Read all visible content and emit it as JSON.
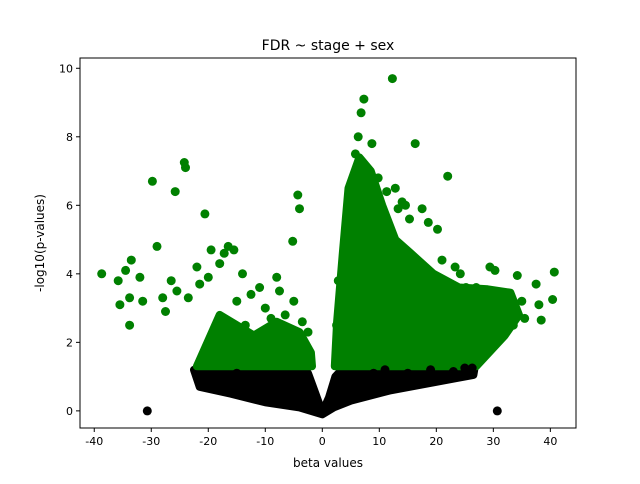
{
  "chart_data": {
    "type": "scatter",
    "title": "FDR ~ stage + sex",
    "xlabel": "beta values",
    "ylabel": "-log10(p-values)",
    "xlim": [
      -42.5,
      44.5
    ],
    "ylim": [
      -0.5,
      10.3
    ],
    "xticks": [
      -40,
      -30,
      -20,
      -10,
      0,
      10,
      20,
      30,
      40
    ],
    "yticks": [
      0,
      2,
      4,
      6,
      8,
      10
    ],
    "grid": false,
    "legend": "none",
    "colors": {
      "significant": "#008000",
      "not_significant": "#000000"
    },
    "significance_threshold_y": 1.3,
    "series": [
      {
        "color": "#008000",
        "points": [
          [
            -38.7,
            4.0
          ],
          [
            -35.8,
            3.8
          ],
          [
            -35.5,
            3.1
          ],
          [
            -34.5,
            4.1
          ],
          [
            -33.8,
            3.3
          ],
          [
            -33.5,
            4.4
          ],
          [
            -33.8,
            2.5
          ],
          [
            -32.0,
            3.9
          ],
          [
            -31.5,
            3.2
          ],
          [
            -29.8,
            6.7
          ],
          [
            -29.0,
            4.8
          ],
          [
            -28.0,
            3.3
          ],
          [
            -27.5,
            2.9
          ],
          [
            -26.5,
            3.8
          ],
          [
            -25.8,
            6.4
          ],
          [
            -25.5,
            3.5
          ],
          [
            -24.2,
            7.25
          ],
          [
            -24.0,
            7.1
          ],
          [
            -23.5,
            3.3
          ],
          [
            -22.0,
            4.2
          ],
          [
            -21.5,
            3.7
          ],
          [
            -20.6,
            5.75
          ],
          [
            -20.0,
            3.9
          ],
          [
            -19.5,
            4.7
          ],
          [
            -18.8,
            2.4
          ],
          [
            -18.0,
            4.3
          ],
          [
            -17.2,
            4.6
          ],
          [
            -16.5,
            4.8
          ],
          [
            -15.5,
            4.7
          ],
          [
            -15.0,
            3.2
          ],
          [
            -14.0,
            4.0
          ],
          [
            -13.5,
            2.5
          ],
          [
            -12.5,
            3.4
          ],
          [
            -11.0,
            3.6
          ],
          [
            -10.5,
            2.2
          ],
          [
            -10.0,
            3.0
          ],
          [
            -9.0,
            2.7
          ],
          [
            -8.0,
            3.9
          ],
          [
            -7.5,
            3.5
          ],
          [
            -7.0,
            1.9
          ],
          [
            -6.5,
            2.8
          ],
          [
            -5.5,
            2.2
          ],
          [
            -5.0,
            3.2
          ],
          [
            -5.2,
            4.95
          ],
          [
            -4.3,
            6.3
          ],
          [
            -4.0,
            5.9
          ],
          [
            -3.5,
            2.6
          ],
          [
            -3.0,
            1.8
          ],
          [
            -2.5,
            2.3
          ],
          [
            2.5,
            2.5
          ],
          [
            2.8,
            3.8
          ],
          [
            3.0,
            1.5
          ],
          [
            3.3,
            2.0
          ],
          [
            3.8,
            4.2
          ],
          [
            4.0,
            2.8
          ],
          [
            4.5,
            5.5
          ],
          [
            5.0,
            3.2
          ],
          [
            5.5,
            6.0
          ],
          [
            5.8,
            7.5
          ],
          [
            6.3,
            8.0
          ],
          [
            6.8,
            8.7
          ],
          [
            7.3,
            9.1
          ],
          [
            7.8,
            7.1
          ],
          [
            8.2,
            6.2
          ],
          [
            8.7,
            7.8
          ],
          [
            9.3,
            5.8
          ],
          [
            9.8,
            6.8
          ],
          [
            10.3,
            5.2
          ],
          [
            10.8,
            4.6
          ],
          [
            11.3,
            6.4
          ],
          [
            12.3,
            9.7
          ],
          [
            12.8,
            6.5
          ],
          [
            13.3,
            5.9
          ],
          [
            14.0,
            6.1
          ],
          [
            14.6,
            6.0
          ],
          [
            15.3,
            5.6
          ],
          [
            16.3,
            7.8
          ],
          [
            16.8,
            3.6
          ],
          [
            17.5,
            5.9
          ],
          [
            18.0,
            3.2
          ],
          [
            18.6,
            5.5
          ],
          [
            19.3,
            3.8
          ],
          [
            20.2,
            5.3
          ],
          [
            21.0,
            4.4
          ],
          [
            22.0,
            6.85
          ],
          [
            22.6,
            3.4
          ],
          [
            23.3,
            4.2
          ],
          [
            24.2,
            4.0
          ],
          [
            25.2,
            3.6
          ],
          [
            26.0,
            3.0
          ],
          [
            27.0,
            3.6
          ],
          [
            28.5,
            2.8
          ],
          [
            29.4,
            4.2
          ],
          [
            30.3,
            4.1
          ],
          [
            31.5,
            2.2
          ],
          [
            33.0,
            3.3
          ],
          [
            34.2,
            3.95
          ],
          [
            35.5,
            2.7
          ],
          [
            37.5,
            3.7
          ],
          [
            38.0,
            3.1
          ],
          [
            38.4,
            2.65
          ],
          [
            40.4,
            3.25
          ],
          [
            40.7,
            4.05
          ],
          [
            17.0,
            2.5
          ],
          [
            19.0,
            2.1
          ],
          [
            21.5,
            2.6
          ],
          [
            23.5,
            2.2
          ],
          [
            25.5,
            1.8
          ],
          [
            27.5,
            2.0
          ],
          [
            29.5,
            2.6
          ],
          [
            31.0,
            3.0
          ],
          [
            33.5,
            2.5
          ],
          [
            35.0,
            3.2
          ]
        ]
      },
      {
        "color": "#000000",
        "points": [
          [
            -22.0,
            1.05
          ],
          [
            -21.3,
            0.8
          ],
          [
            -20.0,
            1.0
          ],
          [
            -18.5,
            0.9
          ],
          [
            -17.0,
            0.8
          ],
          [
            -15.0,
            1.1
          ],
          [
            -13.0,
            0.7
          ],
          [
            -11.0,
            1.0
          ],
          [
            -9.0,
            0.6
          ],
          [
            -7.0,
            0.9
          ],
          [
            -5.0,
            0.5
          ],
          [
            -3.0,
            0.8
          ],
          [
            -1.5,
            0.3
          ],
          [
            0.0,
            0.05
          ],
          [
            1.5,
            0.35
          ],
          [
            3.0,
            0.6
          ],
          [
            5.0,
            0.9
          ],
          [
            7.0,
            1.0
          ],
          [
            9.0,
            1.1
          ],
          [
            11.0,
            1.2
          ],
          [
            13.0,
            1.0
          ],
          [
            15.0,
            1.1
          ],
          [
            17.0,
            1.0
          ],
          [
            19.0,
            1.2
          ],
          [
            21.0,
            1.0
          ],
          [
            23.0,
            1.15
          ],
          [
            25.0,
            1.25
          ],
          [
            26.3,
            1.25
          ],
          [
            -30.7,
            0.0
          ],
          [
            30.7,
            0.0
          ]
        ]
      }
    ]
  }
}
